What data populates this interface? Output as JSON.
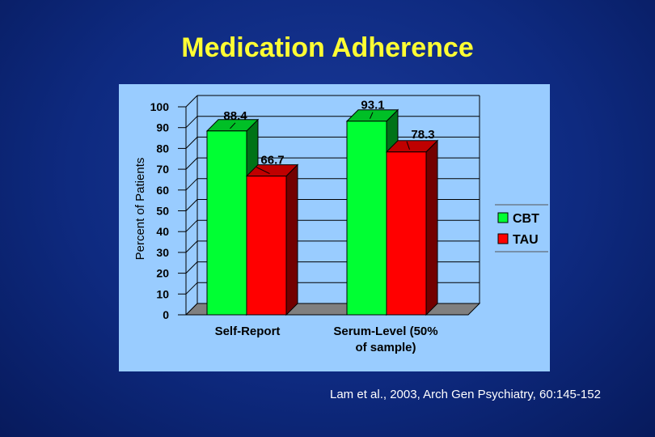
{
  "title": "Medication Adherence",
  "citation": "Lam et al., 2003, Arch Gen Psychiatry,  60:145-152",
  "colors": {
    "background": "#0e2a80",
    "title": "#ffff33",
    "panel": "#99ccff",
    "cbt": "#00ff33",
    "tau": "#ff0000"
  },
  "chart_data": {
    "type": "bar",
    "ylabel": "Percent of Patients",
    "ylim": [
      0,
      100
    ],
    "yticks": [
      0,
      10,
      20,
      30,
      40,
      50,
      60,
      70,
      80,
      90,
      100
    ],
    "categories": [
      "Self-Report",
      "Serum-Level (50% of sample)"
    ],
    "category_lines": [
      [
        "Self-Report"
      ],
      [
        "Serum-Level (50%",
        "of sample)"
      ]
    ],
    "series": [
      {
        "name": "CBT",
        "values": [
          88.4,
          93.1
        ],
        "labels": [
          "88.4",
          "93.1"
        ]
      },
      {
        "name": "TAU",
        "values": [
          66.7,
          78.3
        ],
        "labels": [
          "66.7",
          "78.3"
        ]
      }
    ],
    "legend_position": "right",
    "grid": true,
    "style": "3d"
  }
}
